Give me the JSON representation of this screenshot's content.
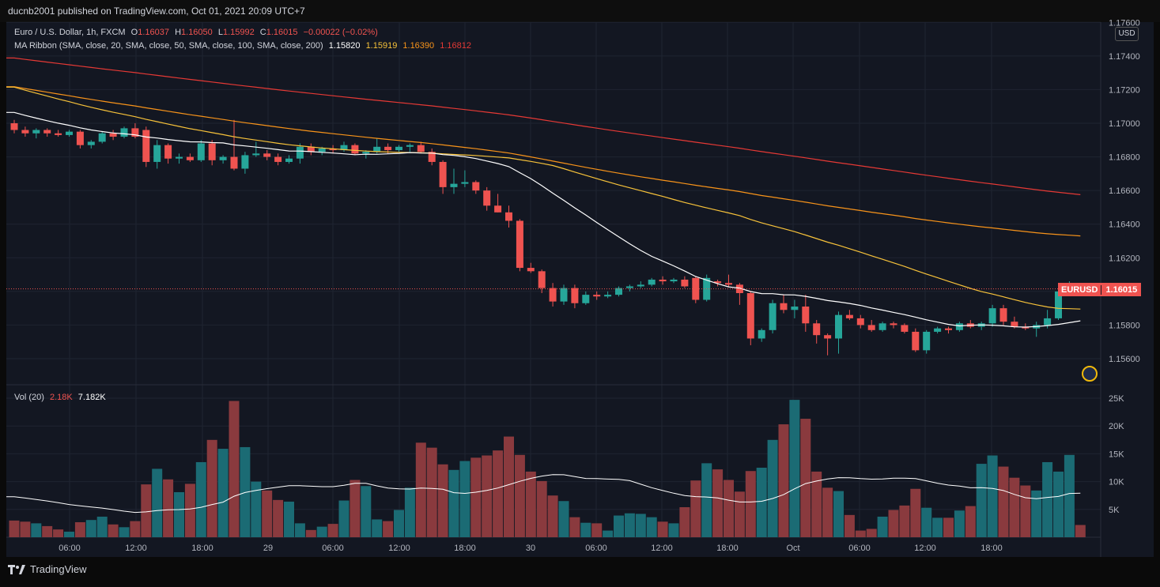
{
  "header": {
    "published": "ducnb2001 published on TradingView.com, Oct 01, 2021 20:09 UTC+7"
  },
  "legend": {
    "symbol": "Euro / U.S. Dollar, 1h, FXCM",
    "o_label": "O",
    "o": "1.16037",
    "h_label": "H",
    "h": "1.16050",
    "l_label": "L",
    "l": "1.15992",
    "c_label": "C",
    "c": "1.16015",
    "change": "−0.00022 (−0.02%)",
    "ma_label": "MA Ribbon (SMA, close, 20, SMA, close, 50, SMA, close, 100, SMA, close, 200)",
    "ma20": "1.15820",
    "ma50": "1.15919",
    "ma100": "1.16390",
    "ma200": "1.16812",
    "vol_label": "Vol (20)",
    "vol_value": "2.18K",
    "vol_ma": "7.182K"
  },
  "price_axis": {
    "currency": "USD",
    "ticks": [
      "1.17600",
      "1.17400",
      "1.17200",
      "1.17000",
      "1.16800",
      "1.16600",
      "1.16400",
      "1.16200",
      "1.15800",
      "1.15600"
    ],
    "current_symbol": "EURUSD",
    "current_price": "1.16015"
  },
  "volume_axis": {
    "ticks": [
      "25K",
      "20K",
      "15K",
      "10K",
      "5K"
    ]
  },
  "time_axis": {
    "ticks": [
      "06:00",
      "12:00",
      "18:00",
      "29",
      "06:00",
      "12:00",
      "18:00",
      "30",
      "06:00",
      "12:00",
      "18:00",
      "Oct",
      "06:00",
      "12:00",
      "18:00"
    ]
  },
  "footer": {
    "brand": "TradingView"
  },
  "colors": {
    "up": "#26a69a",
    "down": "#ef5350",
    "ma20": "#ffffff",
    "ma50": "#f7c23a",
    "ma100": "#f7931a",
    "ma200": "#e53935",
    "bg": "#131722"
  },
  "chart_data": {
    "type": "candlestick",
    "interval": "1h",
    "ylim": [
      1.155,
      1.176
    ],
    "candles": [
      [
        1.17,
        1.1702,
        1.1694,
        1.1696
      ],
      [
        1.1696,
        1.1698,
        1.1692,
        1.1694
      ],
      [
        1.1694,
        1.1697,
        1.1691,
        1.1696
      ],
      [
        1.1696,
        1.1697,
        1.1692,
        1.1694
      ],
      [
        1.1694,
        1.1696,
        1.1692,
        1.1693
      ],
      [
        1.1693,
        1.1696,
        1.1692,
        1.1695
      ],
      [
        1.1695,
        1.1696,
        1.1685,
        1.1687
      ],
      [
        1.1687,
        1.169,
        1.1685,
        1.1689
      ],
      [
        1.1689,
        1.1695,
        1.1688,
        1.1694
      ],
      [
        1.1694,
        1.1696,
        1.169,
        1.1692
      ],
      [
        1.1692,
        1.1698,
        1.1691,
        1.1697
      ],
      [
        1.1697,
        1.17,
        1.1691,
        1.1692
      ],
      [
        1.1696,
        1.1698,
        1.1674,
        1.1677
      ],
      [
        1.1677,
        1.169,
        1.1673,
        1.1687
      ],
      [
        1.1687,
        1.1688,
        1.1676,
        1.1679
      ],
      [
        1.1679,
        1.1682,
        1.1676,
        1.168
      ],
      [
        1.168,
        1.1682,
        1.1677,
        1.1678
      ],
      [
        1.1678,
        1.169,
        1.1677,
        1.1688
      ],
      [
        1.1688,
        1.169,
        1.1675,
        1.1678
      ],
      [
        1.1678,
        1.1681,
        1.1676,
        1.168
      ],
      [
        1.168,
        1.1702,
        1.1672,
        1.1673
      ],
      [
        1.1673,
        1.1683,
        1.167,
        1.1681
      ],
      [
        1.1681,
        1.1689,
        1.168,
        1.1682
      ],
      [
        1.1682,
        1.1684,
        1.1678,
        1.168
      ],
      [
        1.168,
        1.1682,
        1.1675,
        1.1677
      ],
      [
        1.1677,
        1.1681,
        1.1676,
        1.1679
      ],
      [
        1.1679,
        1.1688,
        1.1676,
        1.1686
      ],
      [
        1.1686,
        1.1688,
        1.1681,
        1.1683
      ],
      [
        1.1683,
        1.1686,
        1.1681,
        1.1685
      ],
      [
        1.1685,
        1.1687,
        1.1682,
        1.1684
      ],
      [
        1.1684,
        1.1689,
        1.1683,
        1.1687
      ],
      [
        1.1687,
        1.1688,
        1.1681,
        1.1682
      ],
      [
        1.1682,
        1.1684,
        1.1679,
        1.1683
      ],
      [
        1.1683,
        1.1691,
        1.1682,
        1.1686
      ],
      [
        1.1686,
        1.1688,
        1.1682,
        1.1684
      ],
      [
        1.1684,
        1.1687,
        1.1683,
        1.1686
      ],
      [
        1.1686,
        1.1688,
        1.1683,
        1.1687
      ],
      [
        1.1687,
        1.1689,
        1.1682,
        1.1683
      ],
      [
        1.1683,
        1.1685,
        1.1675,
        1.1677
      ],
      [
        1.1677,
        1.1678,
        1.1658,
        1.1662
      ],
      [
        1.1662,
        1.1673,
        1.1658,
        1.1664
      ],
      [
        1.1664,
        1.1672,
        1.1662,
        1.1665
      ],
      [
        1.1665,
        1.1666,
        1.1658,
        1.166
      ],
      [
        1.166,
        1.1662,
        1.1648,
        1.1651
      ],
      [
        1.1651,
        1.1658,
        1.1647,
        1.1647
      ],
      [
        1.1647,
        1.1651,
        1.1638,
        1.1642
      ],
      [
        1.1642,
        1.1643,
        1.1612,
        1.1614
      ],
      [
        1.1614,
        1.1617,
        1.1611,
        1.1612
      ],
      [
        1.1612,
        1.1613,
        1.1599,
        1.1602
      ],
      [
        1.1602,
        1.1605,
        1.1591,
        1.1594
      ],
      [
        1.1594,
        1.1604,
        1.1592,
        1.1602
      ],
      [
        1.1602,
        1.1604,
        1.159,
        1.1593
      ],
      [
        1.1593,
        1.16,
        1.1592,
        1.1598
      ],
      [
        1.1598,
        1.16,
        1.1595,
        1.1597
      ],
      [
        1.1597,
        1.16,
        1.1596,
        1.1598
      ],
      [
        1.1598,
        1.1603,
        1.1597,
        1.1602
      ],
      [
        1.1602,
        1.1604,
        1.16,
        1.1603
      ],
      [
        1.1603,
        1.1606,
        1.1602,
        1.1604
      ],
      [
        1.1604,
        1.1608,
        1.1603,
        1.1607
      ],
      [
        1.1607,
        1.1609,
        1.1604,
        1.1606
      ],
      [
        1.1606,
        1.1608,
        1.1605,
        1.1607
      ],
      [
        1.1607,
        1.1609,
        1.1602,
        1.1603
      ],
      [
        1.1608,
        1.1609,
        1.1593,
        1.1595
      ],
      [
        1.1595,
        1.161,
        1.1594,
        1.1608
      ],
      [
        1.1606,
        1.1607,
        1.1603,
        1.1605
      ],
      [
        1.1605,
        1.161,
        1.1603,
        1.1604
      ],
      [
        1.1604,
        1.1605,
        1.1592,
        1.1599
      ],
      [
        1.1599,
        1.16,
        1.1568,
        1.1572
      ],
      [
        1.1572,
        1.1578,
        1.157,
        1.1577
      ],
      [
        1.1577,
        1.1595,
        1.1575,
        1.1593
      ],
      [
        1.1593,
        1.1598,
        1.1587,
        1.1589
      ],
      [
        1.1589,
        1.1595,
        1.1584,
        1.1591
      ],
      [
        1.1591,
        1.1598,
        1.1576,
        1.1581
      ],
      [
        1.1581,
        1.1583,
        1.1569,
        1.1574
      ],
      [
        1.1574,
        1.1575,
        1.1562,
        1.1572
      ],
      [
        1.1572,
        1.1588,
        1.1563,
        1.1586
      ],
      [
        1.1586,
        1.1589,
        1.1583,
        1.1584
      ],
      [
        1.1584,
        1.1586,
        1.1578,
        1.158
      ],
      [
        1.158,
        1.1583,
        1.1576,
        1.1577
      ],
      [
        1.1577,
        1.1582,
        1.1576,
        1.1581
      ],
      [
        1.1581,
        1.1582,
        1.1578,
        1.158
      ],
      [
        1.158,
        1.1581,
        1.1575,
        1.1576
      ],
      [
        1.1576,
        1.1578,
        1.1564,
        1.1565
      ],
      [
        1.1565,
        1.1577,
        1.1563,
        1.1576
      ],
      [
        1.1576,
        1.1579,
        1.1575,
        1.1578
      ],
      [
        1.1578,
        1.1579,
        1.1575,
        1.1577
      ],
      [
        1.1577,
        1.1582,
        1.1576,
        1.1581
      ],
      [
        1.1581,
        1.1583,
        1.1578,
        1.1579
      ],
      [
        1.1579,
        1.1582,
        1.1577,
        1.1581
      ],
      [
        1.1581,
        1.1592,
        1.1579,
        1.159
      ],
      [
        1.159,
        1.1592,
        1.158,
        1.1582
      ],
      [
        1.1582,
        1.1585,
        1.1578,
        1.1579
      ],
      [
        1.1579,
        1.1581,
        1.1577,
        1.1578
      ],
      [
        1.1578,
        1.1582,
        1.1573,
        1.158
      ],
      [
        1.158,
        1.1589,
        1.1578,
        1.1584
      ],
      [
        1.1584,
        1.1602,
        1.1583,
        1.16
      ],
      [
        1.16,
        1.1606,
        1.1598,
        1.1604
      ],
      [
        1.1604,
        1.1605,
        1.1599,
        1.1602
      ]
    ],
    "volume": [
      3,
      2.8,
      2.5,
      2,
      1.4,
      1,
      2.7,
      3.1,
      3.7,
      2.3,
      1.8,
      2.9,
      9.5,
      12.3,
      10.4,
      8.1,
      9.6,
      13.5,
      17.5,
      15.9,
      24.5,
      16.2,
      10,
      8.4,
      6.7,
      6.4,
      2.5,
      1.3,
      1.9,
      2.4,
      6.6,
      10.3,
      9.2,
      3.2,
      2.9,
      4.9,
      8.9,
      17,
      16.1,
      13.1,
      12.1,
      13.7,
      14.3,
      14.7,
      15.6,
      18.1,
      14.8,
      11.8,
      10.1,
      7.5,
      6.5,
      3.6,
      2.6,
      2.5,
      1.2,
      3.9,
      4.3,
      4.2,
      3.6,
      2.8,
      2.5,
      5.4,
      10.2,
      13.3,
      12.2,
      10.3,
      8.2,
      11.9,
      12.5,
      17.5,
      20.3,
      24.7,
      21.3,
      11.8,
      8.9,
      8.3,
      4,
      1.2,
      1.5,
      3.7,
      4.9,
      5.7,
      8.7,
      5.3,
      3.5,
      3.5,
      4.8,
      5.6,
      13.2,
      14.7,
      12.7,
      10.7,
      9.3,
      8.4,
      13.5,
      11.8,
      14.8,
      2.2
    ],
    "volume_ma_last": 7.182,
    "ma_last": {
      "sma20": 1.1582,
      "sma50": 1.15919,
      "sma100": 1.1639,
      "sma200": 1.16812
    }
  }
}
